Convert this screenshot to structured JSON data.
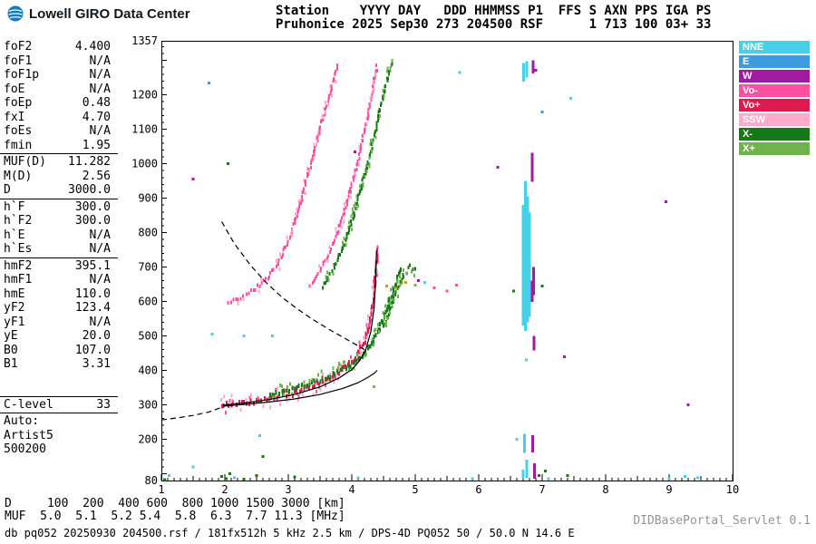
{
  "meta": {
    "app_title": "Lowell GIRO Data Center"
  },
  "header": {
    "line1": "Station    YYYY DAY   DDD HHMMSS P1  FFS S AXN PPS IGA PS",
    "line2": "Pruhonice 2025 Sep30 273 204500 RSF      1 713 100 03+ 33"
  },
  "params": {
    "groups": [
      {
        "rows": [
          [
            "foF2",
            "4.400"
          ],
          [
            "foF1",
            "N/A"
          ],
          [
            "foF1p",
            "N/A"
          ],
          [
            "foE",
            "N/A"
          ],
          [
            "foEp",
            "0.48"
          ],
          [
            "fxI",
            "4.70"
          ],
          [
            "foEs",
            "N/A"
          ],
          [
            "fmin",
            "1.95"
          ]
        ]
      },
      {
        "rows": [
          [
            "MUF(D)",
            "11.282"
          ],
          [
            "M(D)",
            "2.56"
          ],
          [
            "D",
            "3000.0"
          ]
        ]
      },
      {
        "rows": [
          [
            "h`F",
            "300.0"
          ],
          [
            "h`F2",
            "300.0"
          ],
          [
            "h`E",
            "N/A"
          ],
          [
            "h`Es",
            "N/A"
          ]
        ]
      },
      {
        "rows": [
          [
            "hmF2",
            "395.1"
          ],
          [
            "hmF1",
            "N/A"
          ],
          [
            "hmE",
            "110.0"
          ],
          [
            "yF2",
            "123.4"
          ],
          [
            "yF1",
            "N/A"
          ],
          [
            "yE",
            "20.0"
          ],
          [
            "B0",
            "107.0"
          ],
          [
            "B1",
            "3.31"
          ]
        ]
      }
    ],
    "c_level": {
      "label": "C-level",
      "value": "33"
    },
    "auto_lines": [
      "Auto:",
      "Artist5",
      "500200"
    ]
  },
  "legend": {
    "items": [
      {
        "label": "NNE",
        "color": "#49d0e9"
      },
      {
        "label": "E",
        "color": "#3d9be0"
      },
      {
        "label": "W",
        "color": "#a01ba0"
      },
      {
        "label": "Vo-",
        "color": "#ff4fa0"
      },
      {
        "label": "Vo+",
        "color": "#e01a4f"
      },
      {
        "label": "SSW",
        "color": "#ffaac8"
      },
      {
        "label": "X-",
        "color": "#157a15"
      },
      {
        "label": "X+",
        "color": "#6fb24e"
      }
    ]
  },
  "footer": {
    "d_line": "D     100  200  400 600  800 1000 1500 3000 [km]",
    "muf_line": "MUF  5.0  5.1  5.2 5.4  5.8  6.3  7.7 11.3 [MHz]",
    "info_line": "db pq052 20250930 204500.rsf / 181fx512h 5 kHz 2.5 km / DPS-4D PQ052 50 / 50.0 N 14.6 E",
    "credit": "DIDBasePortal_Servlet 0.1"
  },
  "palette": {
    "cy": "#49d0e9",
    "bl": "#3d9be0",
    "pu": "#a01ba0",
    "pk": "#ff4fa0",
    "cr": "#e01a4f",
    "sp": "#ffaac8",
    "gd": "#157a15",
    "gl": "#6fb24e",
    "ol": "#b3a31c"
  },
  "chart_data": {
    "type": "scatter",
    "title": "Pruhonice ionogram 2025 Sep30 204500",
    "x_unit": "MHz",
    "y_unit": "km",
    "xlim": [
      1,
      10
    ],
    "ylim": [
      80,
      1357
    ],
    "xticks": [
      1,
      2,
      3,
      4,
      5,
      6,
      7,
      8,
      9,
      10
    ],
    "yticks": [
      1357,
      1200,
      1100,
      1000,
      900,
      800,
      700,
      600,
      500,
      400,
      300,
      200,
      80
    ],
    "traces": [
      {
        "name": "F2-O-mode",
        "color": "cr",
        "fringe": [
          "pk",
          "sp"
        ],
        "fringeDensity": 0.75,
        "fringeSpread": 7,
        "dot": [
          2,
          5
        ],
        "points": [
          [
            1.95,
            299
          ],
          [
            2.1,
            301
          ],
          [
            2.3,
            304
          ],
          [
            2.5,
            309
          ],
          [
            2.7,
            316
          ],
          [
            2.9,
            324
          ],
          [
            3.1,
            334
          ],
          [
            3.3,
            347
          ],
          [
            3.5,
            362
          ],
          [
            3.7,
            381
          ],
          [
            3.85,
            400
          ],
          [
            4.0,
            425
          ],
          [
            4.1,
            450
          ],
          [
            4.2,
            485
          ],
          [
            4.28,
            535
          ],
          [
            4.33,
            590
          ],
          [
            4.36,
            650
          ],
          [
            4.39,
            720
          ],
          [
            4.41,
            760
          ]
        ]
      },
      {
        "name": "F2-X-mode",
        "color": "gd",
        "fringe": [
          "gl"
        ],
        "fringeDensity": 0.6,
        "fringeSpread": 6,
        "dot": [
          2,
          5
        ],
        "points": [
          [
            2.7,
            330
          ],
          [
            2.9,
            338
          ],
          [
            3.1,
            347
          ],
          [
            3.3,
            358
          ],
          [
            3.5,
            371
          ],
          [
            3.7,
            387
          ],
          [
            3.9,
            406
          ],
          [
            4.05,
            425
          ],
          [
            4.2,
            450
          ],
          [
            4.32,
            480
          ],
          [
            4.42,
            515
          ],
          [
            4.52,
            560
          ],
          [
            4.62,
            615
          ],
          [
            4.72,
            668
          ],
          [
            4.8,
            700
          ]
        ]
      },
      {
        "name": "F2-X-mode-cusp",
        "color": "gd",
        "fringe": [
          "gl"
        ],
        "fringeDensity": 0.7,
        "fringeSpread": 5,
        "dot": [
          2,
          4
        ],
        "points": [
          [
            4.5,
            530
          ],
          [
            4.62,
            585
          ],
          [
            4.72,
            640
          ],
          [
            4.82,
            680
          ],
          [
            4.92,
            700
          ],
          [
            5.02,
            688
          ]
        ]
      },
      {
        "name": "second-hop-O-a",
        "color": "pk",
        "fringe": [
          "sp"
        ],
        "fringeDensity": 0.35,
        "fringeSpread": 5,
        "dot": [
          2,
          4
        ],
        "points": [
          [
            2.05,
            598
          ],
          [
            2.25,
            612
          ],
          [
            2.45,
            632
          ],
          [
            2.65,
            663
          ],
          [
            2.85,
            710
          ],
          [
            3.0,
            775
          ],
          [
            3.15,
            860
          ],
          [
            3.3,
            960
          ],
          [
            3.45,
            1065
          ],
          [
            3.6,
            1170
          ],
          [
            3.72,
            1250
          ],
          [
            3.8,
            1288
          ]
        ]
      },
      {
        "name": "second-hop-O-b",
        "color": "pk",
        "fringe": [
          "sp"
        ],
        "fringeDensity": 0.35,
        "fringeSpread": 5,
        "dot": [
          2,
          4
        ],
        "points": [
          [
            3.35,
            648
          ],
          [
            3.5,
            690
          ],
          [
            3.65,
            742
          ],
          [
            3.8,
            815
          ],
          [
            3.95,
            905
          ],
          [
            4.1,
            1010
          ],
          [
            4.22,
            1110
          ],
          [
            4.32,
            1205
          ],
          [
            4.4,
            1290
          ]
        ]
      },
      {
        "name": "second-hop-X",
        "color": "gd",
        "fringe": [
          "gl"
        ],
        "fringeDensity": 0.5,
        "fringeSpread": 5,
        "dot": [
          2,
          4
        ],
        "points": [
          [
            3.55,
            642
          ],
          [
            3.7,
            690
          ],
          [
            3.85,
            752
          ],
          [
            4.0,
            830
          ],
          [
            4.12,
            910
          ],
          [
            4.25,
            1000
          ],
          [
            4.37,
            1095
          ],
          [
            4.48,
            1185
          ],
          [
            4.58,
            1260
          ],
          [
            4.64,
            1295
          ]
        ]
      }
    ],
    "curves": [
      {
        "name": "fitted-virtual-trace",
        "style": "solid",
        "points": [
          [
            1.97,
            299
          ],
          [
            2.3,
            305
          ],
          [
            2.7,
            315
          ],
          [
            3.1,
            330
          ],
          [
            3.5,
            352
          ],
          [
            3.8,
            378
          ],
          [
            4.0,
            402
          ],
          [
            4.12,
            427
          ],
          [
            4.22,
            460
          ],
          [
            4.3,
            512
          ],
          [
            4.35,
            578
          ],
          [
            4.375,
            655
          ],
          [
            4.39,
            748
          ]
        ]
      },
      {
        "name": "true-height-profile",
        "style": "solid",
        "points": [
          [
            1.97,
            296
          ],
          [
            2.3,
            301
          ],
          [
            2.7,
            308
          ],
          [
            3.1,
            317
          ],
          [
            3.5,
            330
          ],
          [
            3.85,
            347
          ],
          [
            4.1,
            364
          ],
          [
            4.25,
            379
          ],
          [
            4.35,
            391
          ],
          [
            4.4,
            400
          ]
        ]
      },
      {
        "name": "muf3000-transmission-curve",
        "style": "dashed",
        "points": [
          [
            1.95,
            832
          ],
          [
            2.15,
            768
          ],
          [
            2.4,
            706
          ],
          [
            2.65,
            655
          ],
          [
            2.9,
            612
          ],
          [
            3.15,
            577
          ],
          [
            3.4,
            546
          ],
          [
            3.65,
            518
          ],
          [
            3.9,
            492
          ],
          [
            4.08,
            473
          ],
          [
            4.2,
            460
          ]
        ]
      },
      {
        "name": "profile-extrapolation",
        "style": "dashed",
        "points": [
          [
            1.0,
            256
          ],
          [
            1.25,
            262
          ],
          [
            1.5,
            269
          ],
          [
            1.75,
            279
          ],
          [
            1.95,
            293
          ]
        ]
      }
    ],
    "bars": [
      [
        6.7,
        530,
        880,
        "cy"
      ],
      [
        6.735,
        515,
        950,
        "cy"
      ],
      [
        6.77,
        540,
        905,
        "cy"
      ],
      [
        6.8,
        555,
        860,
        "cy"
      ],
      [
        6.715,
        560,
        820,
        "cy"
      ],
      [
        6.72,
        160,
        215,
        "cy"
      ],
      [
        6.76,
        88,
        140,
        "cy"
      ],
      [
        6.7,
        85,
        112,
        "cy"
      ],
      [
        6.71,
        1238,
        1292,
        "cy"
      ],
      [
        6.755,
        1250,
        1298,
        "cy"
      ],
      [
        6.845,
        948,
        1032,
        "pu"
      ],
      [
        6.862,
        618,
        700,
        "pu"
      ],
      [
        6.84,
        598,
        660,
        "pu"
      ],
      [
        6.87,
        458,
        500,
        "pu"
      ],
      [
        6.85,
        162,
        212,
        "pu"
      ],
      [
        6.88,
        85,
        130,
        "pu"
      ],
      [
        6.858,
        1262,
        1300,
        "pu"
      ]
    ],
    "noise": [
      [
        1.05,
        82,
        "gd"
      ],
      [
        1.12,
        95,
        "cy"
      ],
      [
        1.5,
        120,
        "cy"
      ],
      [
        1.95,
        92,
        "gd"
      ],
      [
        2.02,
        85,
        "gd"
      ],
      [
        2.08,
        100,
        "gd"
      ],
      [
        2.15,
        88,
        "cy"
      ],
      [
        2.3,
        84,
        "gd"
      ],
      [
        2.5,
        95,
        "gd"
      ],
      [
        2.55,
        210,
        "cy"
      ],
      [
        1.8,
        505,
        "cy"
      ],
      [
        2.3,
        500,
        "cy"
      ],
      [
        1.5,
        955,
        "pu"
      ],
      [
        2.05,
        1000,
        "gd"
      ],
      [
        1.75,
        1235,
        "bl"
      ],
      [
        2.6,
        150,
        "gd"
      ],
      [
        3.1,
        90,
        "gd"
      ],
      [
        4.1,
        88,
        "cy"
      ],
      [
        4.35,
        352,
        "ol"
      ],
      [
        4.55,
        645,
        "ol"
      ],
      [
        4.7,
        638,
        "ol"
      ],
      [
        4.85,
        655,
        "ol"
      ],
      [
        5.0,
        648,
        "ol"
      ],
      [
        5.05,
        660,
        "pu"
      ],
      [
        5.15,
        655,
        "cy"
      ],
      [
        5.3,
        640,
        "pk"
      ],
      [
        5.5,
        630,
        "pk"
      ],
      [
        5.65,
        648,
        "pk"
      ],
      [
        6.3,
        990,
        "pu"
      ],
      [
        6.55,
        630,
        "gd"
      ],
      [
        6.6,
        200,
        "cy"
      ],
      [
        6.75,
        430,
        "cy"
      ],
      [
        6.87,
        470,
        "pu"
      ],
      [
        6.95,
        95,
        "pu"
      ],
      [
        7.0,
        645,
        "gd"
      ],
      [
        7.05,
        108,
        "gd"
      ],
      [
        7.1,
        85,
        "cy"
      ],
      [
        7.35,
        440,
        "pu"
      ],
      [
        7.45,
        1190,
        "cy"
      ],
      [
        6.9,
        1272,
        "pu"
      ],
      [
        7.0,
        1150,
        "bl"
      ],
      [
        8.95,
        890,
        "pu"
      ],
      [
        9.0,
        85,
        "cy"
      ],
      [
        9.25,
        92,
        "cy"
      ],
      [
        9.3,
        300,
        "pu"
      ],
      [
        9.45,
        88,
        "cy"
      ],
      [
        5.7,
        1265,
        "cy"
      ],
      [
        5.9,
        85,
        "cy"
      ],
      [
        2.75,
        500,
        "cy"
      ],
      [
        7.4,
        95,
        "gd"
      ],
      [
        4.05,
        1035,
        "pu"
      ]
    ],
    "muf_table": {
      "d_km": [
        100,
        200,
        400,
        600,
        800,
        1000,
        1500,
        3000
      ],
      "muf_mhz": [
        5.0,
        5.1,
        5.2,
        5.4,
        5.8,
        6.3,
        7.7,
        11.3
      ]
    }
  }
}
